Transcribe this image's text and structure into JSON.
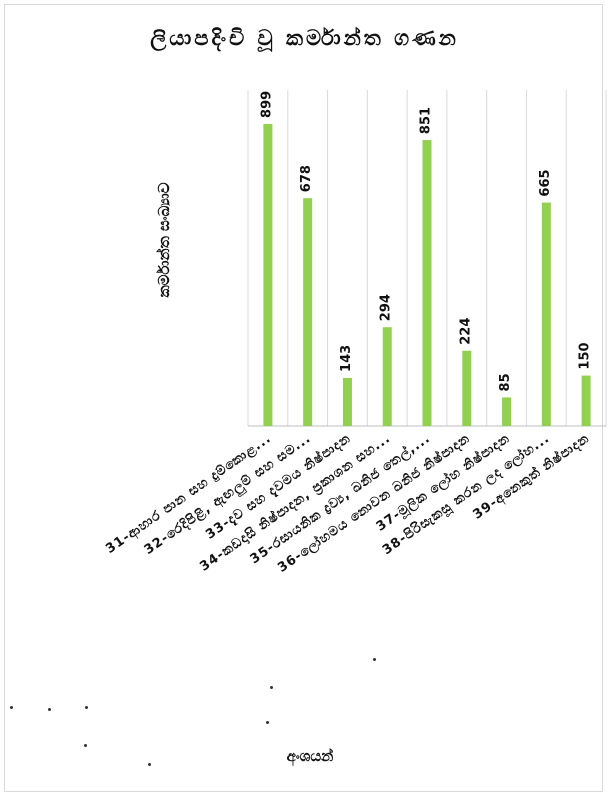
{
  "chart_data": {
    "type": "bar",
    "title": "ලියාපදිංචි වූ කර්මාන්ත ගණන",
    "ylabel": "කර්මාන්ත සංඛ්‍යාව",
    "xlabel": "අංශයන්",
    "categories": [
      "31-ආහාර පාන සහ දුම්කොළ...",
      "32-රෙදිපිළි, ඇඟලුම් සහ සම...",
      "33-දැව සහ දැවමය නිෂ්පාදන",
      "34-කඩදාසි නිෂ්පාදන, ප්‍රකාශන සහ...",
      "35-රසායනික ද්‍රව්‍ය, ඛනිජ තෙල්,...",
      "36-ලෝහමය නොවන ඛනිජ නිෂ්පාදන",
      "37-මූලික ලෝහ නිෂ්පාදන",
      "38-පිරිසැකසූ කරන ලද ලෝහ...",
      "39-අනෙකුත් නිෂ්පාදන"
    ],
    "values": [
      899,
      678,
      143,
      294,
      851,
      224,
      85,
      665,
      150
    ],
    "ylim": [
      0,
      1000
    ],
    "grid": true,
    "bar_color": "#92d050",
    "gridline_color": "#d9d9d9"
  }
}
